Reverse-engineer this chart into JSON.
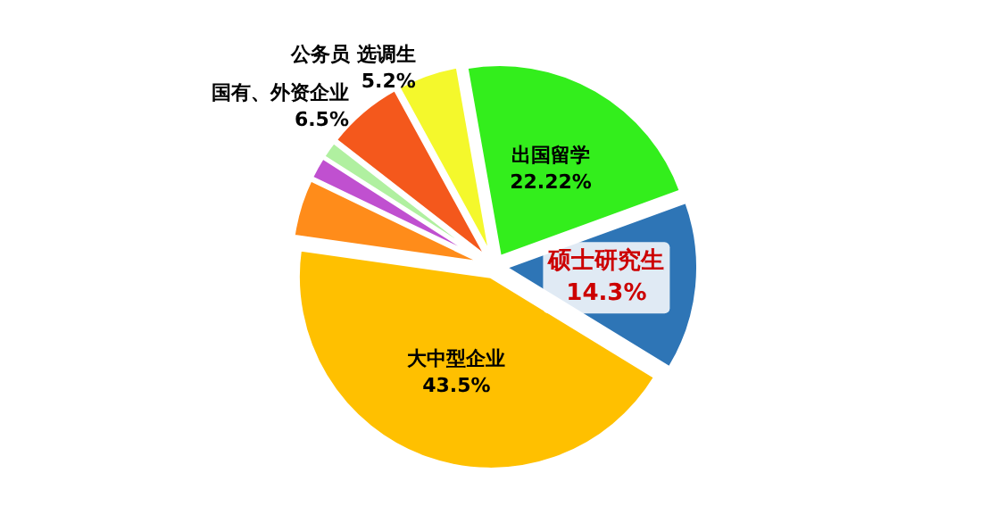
{
  "chart_data": {
    "type": "pie",
    "categories": [
      "硕士研究生",
      "大中型企业",
      null,
      null,
      null,
      "国有、外资企业",
      "公务员 选调生",
      "出国留学"
    ],
    "values": [
      14.3,
      43.5,
      4.9,
      1.9,
      1.48,
      6.5,
      5.2,
      22.22
    ],
    "value_labels": [
      "14.3%",
      "43.5%",
      null,
      null,
      null,
      "6.5%",
      "5.2%",
      "22.22%"
    ],
    "colors": [
      "#2e75b6",
      "#ffc000",
      "#ff8c1a",
      "#c050d0",
      "#b0f0a0",
      "#f4581c",
      "#f4f82c",
      "#33ee1c"
    ],
    "legend": false
  }
}
